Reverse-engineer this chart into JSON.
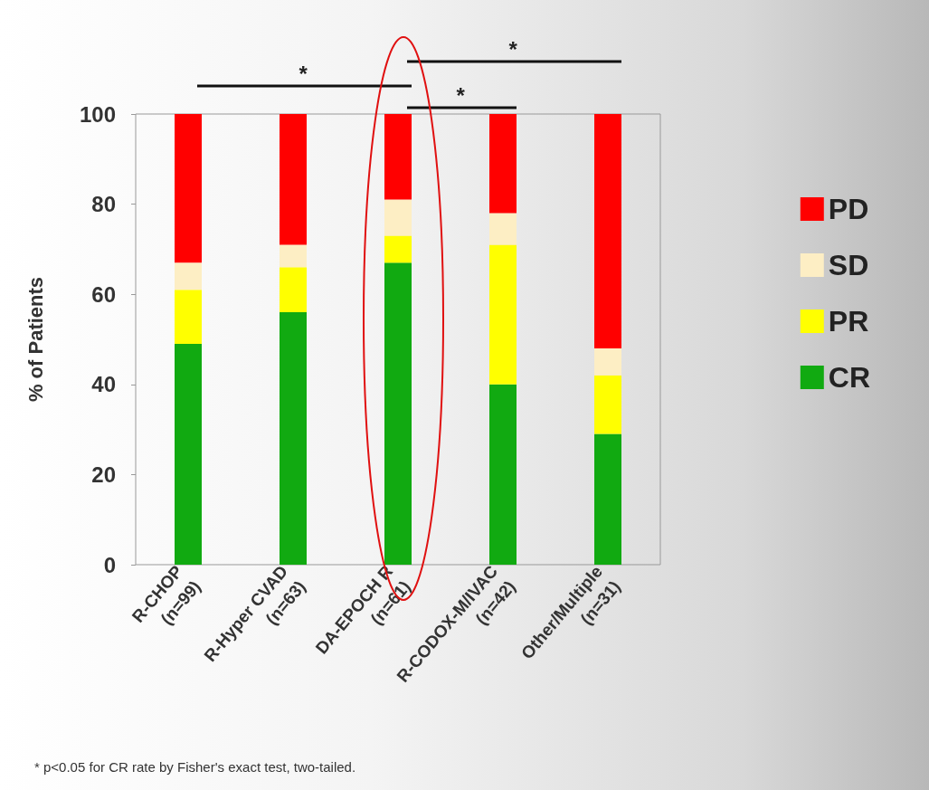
{
  "chart_data": {
    "type": "bar",
    "stacked": true,
    "ylabel": "% of Patients",
    "categories": [
      "R-CHOP\n(n=99)",
      "R-Hyper CVAD\n(n=63)",
      "DA-EPOCH R\n(n=61)",
      "R-CODOX-M/IVAC\n(n=42)",
      "Other/Multiple\n(n=31)"
    ],
    "series": [
      {
        "name": "CR",
        "color": "#11aa11",
        "values": [
          49,
          56,
          67,
          40,
          29
        ]
      },
      {
        "name": "PR",
        "color": "#ffff00",
        "values": [
          12,
          10,
          6,
          31,
          13
        ]
      },
      {
        "name": "SD",
        "color": "#fdeec4",
        "values": [
          6,
          5,
          8,
          7,
          6
        ]
      },
      {
        "name": "PD",
        "color": "#ff0000",
        "values": [
          33,
          29,
          19,
          22,
          52
        ]
      }
    ],
    "ylim": [
      0,
      100
    ],
    "yticks": [
      0,
      20,
      40,
      60,
      80,
      100
    ],
    "grid": false,
    "legend": "right",
    "annotations": [
      "*",
      "*",
      "*",
      "* p<0.05 for CR rate by Fisher's exact test, two-tailed."
    ]
  }
}
